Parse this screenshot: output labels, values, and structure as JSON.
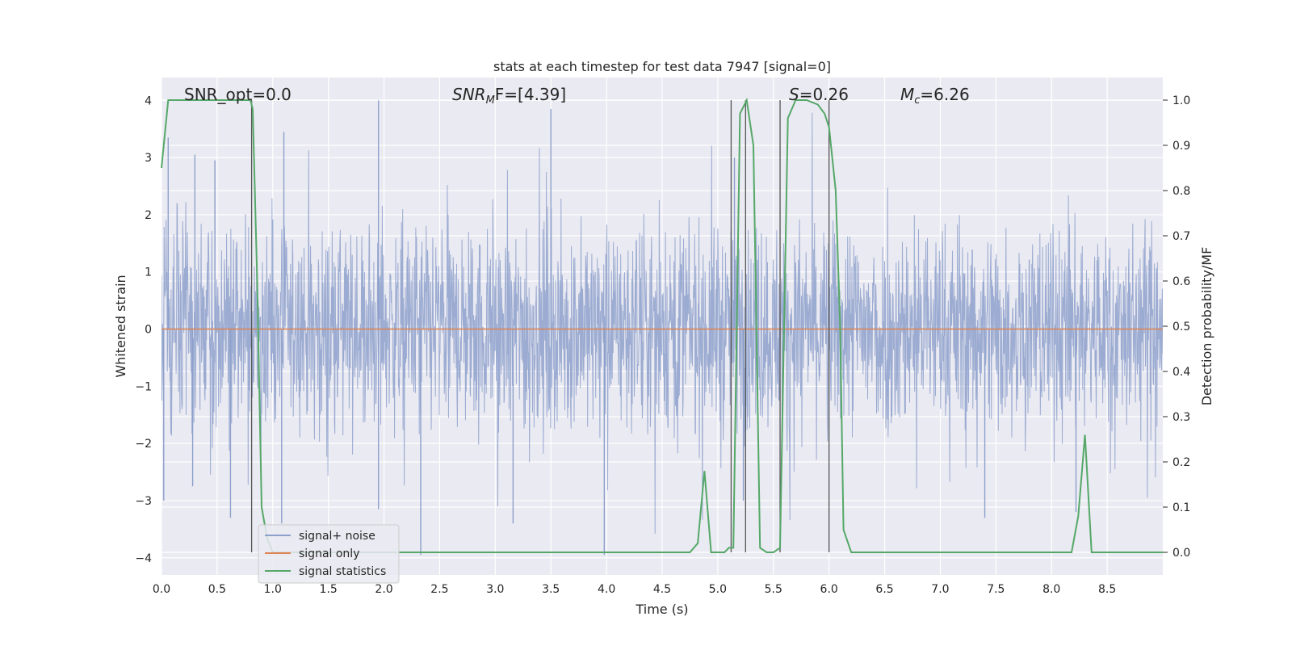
{
  "chart_data": {
    "type": "line",
    "title": "stats at each timestep for test data 7947 [signal=0]",
    "xlabel": "Time (s)",
    "ylabel": "Whitened strain",
    "y2label": "Detection probability/MF",
    "xlim": [
      0,
      9.0
    ],
    "ylim": [
      -4.3,
      4.4
    ],
    "y2lim": [
      -0.05,
      1.05
    ],
    "x_ticks": [
      0.0,
      0.5,
      1.0,
      1.5,
      2.0,
      2.5,
      3.0,
      3.5,
      4.0,
      4.5,
      5.0,
      5.5,
      6.0,
      6.5,
      7.0,
      7.5,
      8.0,
      8.5
    ],
    "x_tick_labels": [
      "0.0",
      "0.5",
      "1.0",
      "1.5",
      "2.0",
      "2.5",
      "3.0",
      "3.5",
      "4.0",
      "4.5",
      "5.0",
      "5.5",
      "6.0",
      "6.5",
      "7.0",
      "7.5",
      "8.0",
      "8.5"
    ],
    "y_ticks": [
      -4,
      -3,
      -2,
      -1,
      0,
      1,
      2,
      3,
      4
    ],
    "y_tick_labels": [
      "−4",
      "−3",
      "−2",
      "−1",
      "0",
      "1",
      "2",
      "3",
      "4"
    ],
    "y2_ticks": [
      0.0,
      0.1,
      0.2,
      0.3,
      0.4,
      0.5,
      0.6,
      0.7,
      0.8,
      0.9,
      1.0
    ],
    "y2_tick_labels": [
      "0.0",
      "0.1",
      "0.2",
      "0.3",
      "0.4",
      "0.5",
      "0.6",
      "0.7",
      "0.8",
      "0.9",
      "1.0"
    ],
    "grid": true,
    "legend_position": "lower-left",
    "annotations": {
      "snr_opt": "SNR_opt=0.0",
      "snr_mf_main": "SNR",
      "snr_mf_sub": "M",
      "snr_mf_rest": "F=[4.39]",
      "s_main": "S",
      "s_rest": "=0.26",
      "mc_main": "M",
      "mc_sub": "c",
      "mc_rest": "=6.26"
    },
    "series": [
      {
        "name": "signal+ noise",
        "color": "#8da0cb",
        "note_kind": "noise",
        "spikes": [
          {
            "x": 0.06,
            "y": 3.35
          },
          {
            "x": 0.3,
            "y": 3.05
          },
          {
            "x": 0.48,
            "y": 2.95
          },
          {
            "x": 1.1,
            "y": 3.45
          },
          {
            "x": 1.95,
            "y": 4.0
          },
          {
            "x": 3.5,
            "y": 3.85
          },
          {
            "x": 0.02,
            "y": -3.0
          },
          {
            "x": 0.28,
            "y": -2.75
          },
          {
            "x": 0.62,
            "y": -3.3
          },
          {
            "x": 1.08,
            "y": -3.4
          },
          {
            "x": 1.95,
            "y": -3.15
          },
          {
            "x": 2.33,
            "y": -3.95
          },
          {
            "x": 3.16,
            "y": -3.4
          },
          {
            "x": 3.98,
            "y": -3.95
          },
          {
            "x": 7.4,
            "y": -3.3
          },
          {
            "x": 8.22,
            "y": -3.2
          },
          {
            "x": 5.15,
            "y": 3.0
          },
          {
            "x": 5.23,
            "y": -3.0
          }
        ]
      },
      {
        "name": "signal only",
        "color": "#dd8452",
        "x": [
          0.0,
          9.0
        ],
        "y": [
          0.0,
          0.0
        ]
      },
      {
        "name": "signal statistics",
        "color": "#55a868",
        "axis": "right",
        "x": [
          0.0,
          0.06,
          0.12,
          0.3,
          0.5,
          0.7,
          0.8,
          0.82,
          0.86,
          0.9,
          0.95,
          1.0,
          1.5,
          2.0,
          2.5,
          3.0,
          3.5,
          4.0,
          4.5,
          4.75,
          4.82,
          4.88,
          4.94,
          5.0,
          5.06,
          5.1,
          5.14,
          5.2,
          5.26,
          5.32,
          5.38,
          5.44,
          5.5,
          5.56,
          5.63,
          5.7,
          5.8,
          5.9,
          5.96,
          6.0,
          6.06,
          6.1,
          6.13,
          6.2,
          6.5,
          7.0,
          7.5,
          8.0,
          8.18,
          8.24,
          8.3,
          8.36,
          8.5,
          9.0
        ],
        "y": [
          0.85,
          1.0,
          1.0,
          1.0,
          1.0,
          1.0,
          1.0,
          0.98,
          0.6,
          0.1,
          0.03,
          0.0,
          0.0,
          0.0,
          0.0,
          0.0,
          0.0,
          0.0,
          0.0,
          0.0,
          0.02,
          0.18,
          0.0,
          0.0,
          0.0,
          0.01,
          0.01,
          0.97,
          1.0,
          0.9,
          0.01,
          0.0,
          0.0,
          0.01,
          0.96,
          1.0,
          1.0,
          0.99,
          0.97,
          0.94,
          0.8,
          0.5,
          0.05,
          0.0,
          0.0,
          0.0,
          0.0,
          0.0,
          0.0,
          0.08,
          0.26,
          0.0,
          0.0,
          0.0
        ]
      }
    ],
    "vertical_markers": [
      0.81,
      5.12,
      5.25,
      5.56,
      6.0
    ]
  }
}
